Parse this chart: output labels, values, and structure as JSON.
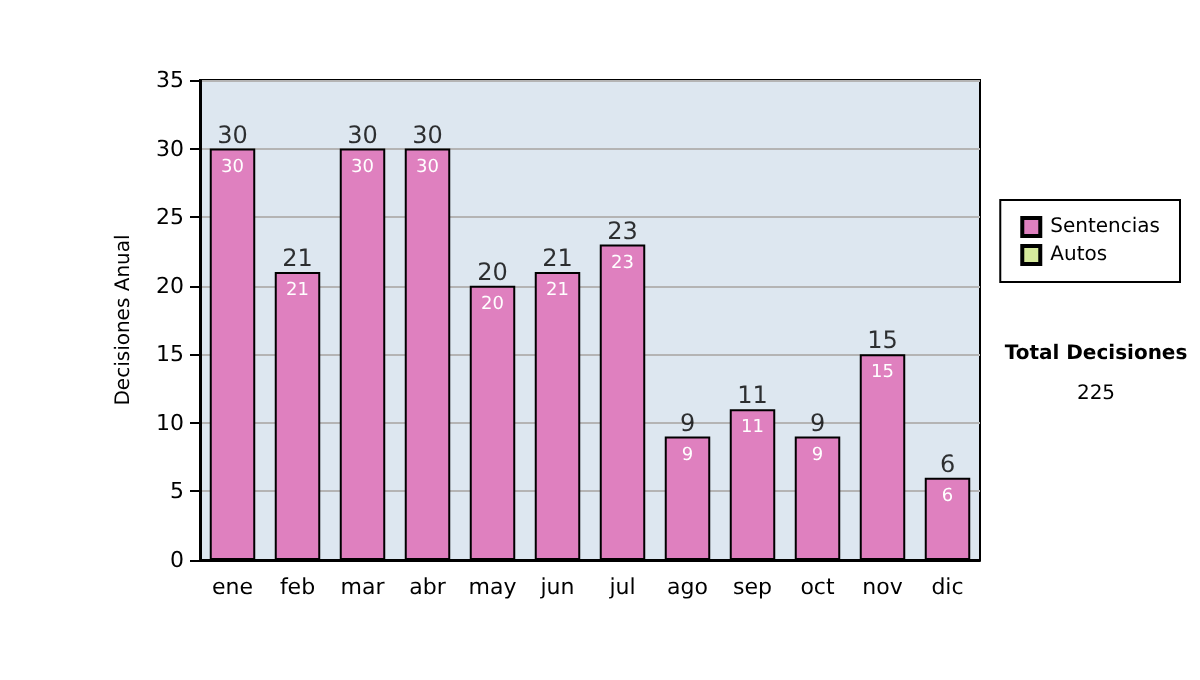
{
  "chart_data": {
    "type": "bar",
    "stacked": true,
    "ylabel": "Decisiones Anual",
    "categories": [
      "ene",
      "feb",
      "mar",
      "abr",
      "may",
      "jun",
      "jul",
      "ago",
      "sep",
      "oct",
      "nov",
      "dic"
    ],
    "series": [
      {
        "name": "Sentencias",
        "color": "#df80bf",
        "values": [
          30,
          21,
          30,
          30,
          20,
          21,
          23,
          9,
          11,
          9,
          15,
          6
        ],
        "value_labels": [
          "30",
          "21",
          "30",
          "30",
          "20",
          "21",
          "23",
          "9",
          "11",
          "9",
          "15",
          "6"
        ]
      },
      {
        "name": "Autos",
        "color": "#d6ea9c",
        "values": [
          0,
          0,
          0,
          0,
          0,
          0,
          0,
          0,
          0,
          0,
          0,
          0
        ]
      }
    ],
    "totals": [
      "30",
      "21",
      "30",
      "30",
      "20",
      "21",
      "23",
      "9",
      "11",
      "9",
      "15",
      "6"
    ],
    "ylim": [
      0,
      35
    ],
    "yticks": [
      0,
      5,
      10,
      15,
      20,
      25,
      30,
      35
    ],
    "grid": "y",
    "legend": "right",
    "annotations": [
      "Total Decisiones",
      "225"
    ]
  }
}
